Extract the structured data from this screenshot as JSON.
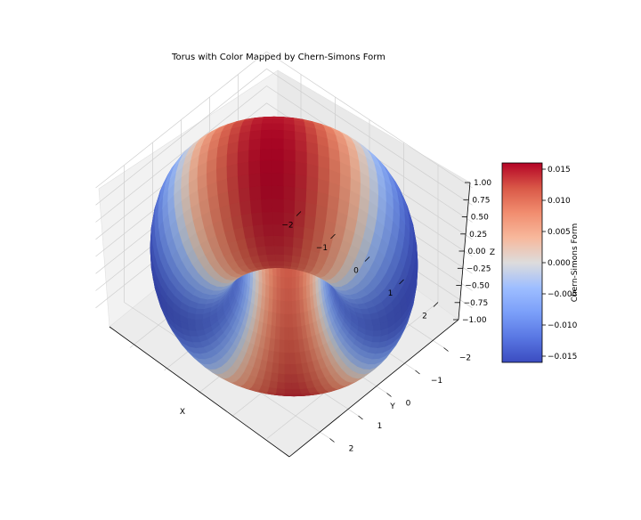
{
  "chart_data": {
    "type": "surface3d",
    "title": "Torus with Color Mapped by Chern-Simons Form",
    "surface": {
      "shape": "torus",
      "major_radius": 2,
      "minor_radius": 1,
      "colormap": "coolwarm"
    },
    "axes": {
      "x": {
        "label": "X",
        "ticks": [
          "−2",
          "−1",
          "0",
          "1",
          "2"
        ],
        "range": [
          -3,
          3
        ]
      },
      "y": {
        "label": "Y",
        "ticks": [
          "−2",
          "−1",
          "0",
          "1",
          "2"
        ],
        "range": [
          -3,
          3
        ]
      },
      "z": {
        "label": "Z",
        "ticks": [
          "−1.00",
          "−0.75",
          "−0.50",
          "−0.25",
          "0.00",
          "0.25",
          "0.50",
          "0.75",
          "1.00"
        ],
        "range": [
          -1,
          1
        ]
      }
    },
    "colorbar": {
      "label": "Chern-Simons Form",
      "range": [
        -0.016,
        0.016
      ],
      "ticks": [
        "−0.015",
        "−0.010",
        "−0.005",
        "0.000",
        "0.005",
        "0.010",
        "0.015"
      ],
      "tick_values": [
        -0.015,
        -0.01,
        -0.005,
        0,
        0.005,
        0.01,
        0.015
      ],
      "colors": [
        "#3b4cc0",
        "#b40426"
      ]
    },
    "grid": true
  }
}
